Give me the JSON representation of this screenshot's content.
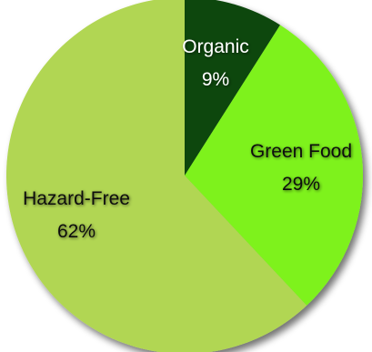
{
  "chart_data": {
    "type": "pie",
    "title": "",
    "slices": [
      {
        "label": "Organic",
        "value": 9,
        "value_label": "9%",
        "color": "#0e4710",
        "label_color": "#ffffff"
      },
      {
        "label": "Green Food",
        "value": 29,
        "value_label": "29%",
        "color": "#7ef21a",
        "label_color": "#111111"
      },
      {
        "label": "Hazard-Free",
        "value": 62,
        "value_label": "62%",
        "color": "#b1d652",
        "label_color": "#111111"
      }
    ],
    "start_angle_deg": 0,
    "direction": "clockwise",
    "shadow": true
  }
}
